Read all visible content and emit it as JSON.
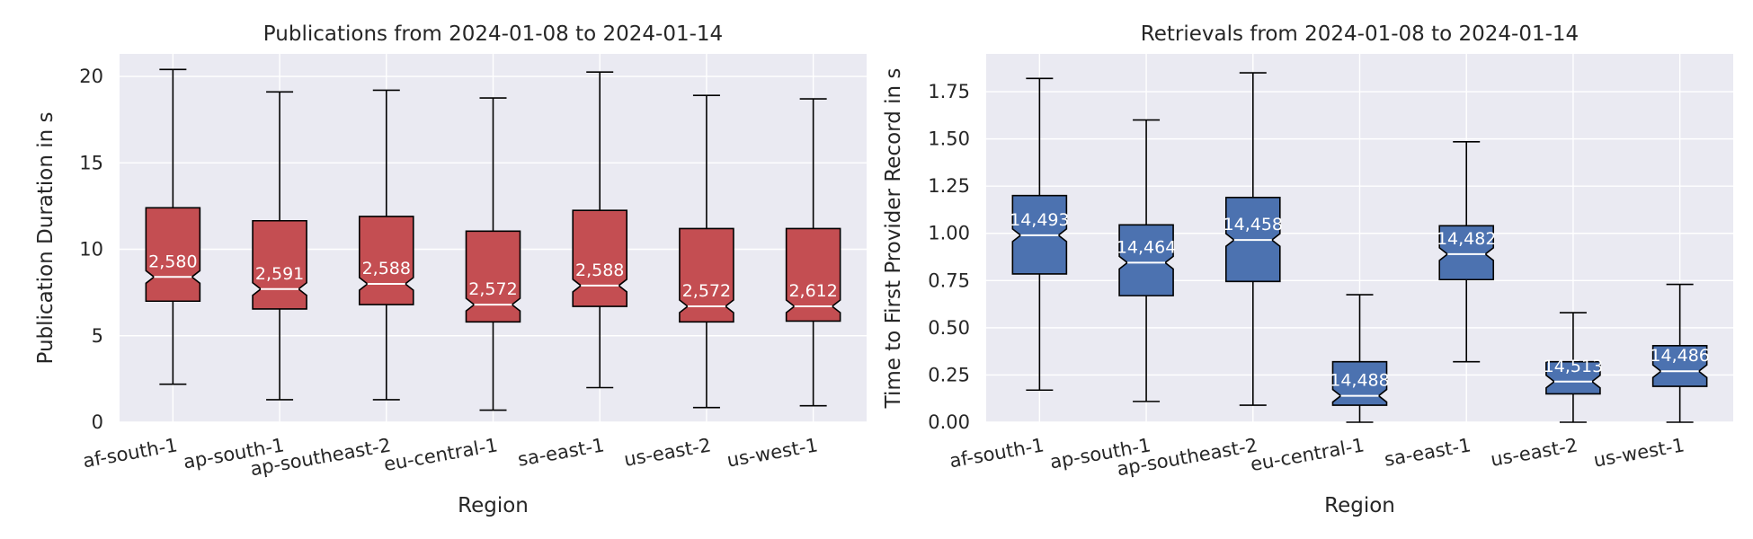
{
  "chart_data": [
    {
      "type": "boxplot",
      "title": "Publications from 2024-01-08 to 2024-01-14",
      "xlabel": "Region",
      "ylabel": "Publication Duration in s",
      "ylim": [
        0,
        21.3
      ],
      "yticks": [
        0,
        5,
        10,
        15,
        20
      ],
      "ytick_labels": [
        "0",
        "5",
        "10",
        "15",
        "20"
      ],
      "grid": true,
      "notched": true,
      "box_color": "#c44e52",
      "categories": [
        "af-south-1",
        "ap-south-1",
        "ap-southeast-2",
        "eu-central-1",
        "sa-east-1",
        "us-east-2",
        "us-west-1"
      ],
      "whisker_low": [
        2.2,
        1.3,
        1.3,
        0.7,
        2.0,
        0.85,
        0.95
      ],
      "q1": [
        7.0,
        6.55,
        6.8,
        5.8,
        6.7,
        5.8,
        5.85
      ],
      "median": [
        8.4,
        7.7,
        8.0,
        6.8,
        7.9,
        6.7,
        6.7
      ],
      "q3": [
        12.4,
        11.65,
        11.9,
        11.05,
        12.25,
        11.2,
        11.2
      ],
      "whisker_high": [
        20.4,
        19.1,
        19.2,
        18.75,
        20.25,
        18.9,
        18.7
      ],
      "counts": [
        "2,580",
        "2,591",
        "2,588",
        "2,572",
        "2,588",
        "2,572",
        "2,612"
      ]
    },
    {
      "type": "boxplot",
      "title": "Retrievals from 2024-01-08 to 2024-01-14",
      "xlabel": "Region",
      "ylabel": "Time to First Provider Record in s",
      "ylim": [
        0,
        1.95
      ],
      "yticks": [
        0,
        0.25,
        0.5,
        0.75,
        1.0,
        1.25,
        1.5,
        1.75
      ],
      "ytick_labels": [
        "0.00",
        "0.25",
        "0.50",
        "0.75",
        "1.00",
        "1.25",
        "1.50",
        "1.75"
      ],
      "grid": true,
      "notched": true,
      "box_color": "#4c72b0",
      "categories": [
        "af-south-1",
        "ap-south-1",
        "ap-southeast-2",
        "eu-central-1",
        "sa-east-1",
        "us-east-2",
        "us-west-1"
      ],
      "whisker_low": [
        0.17,
        0.11,
        0.09,
        0.0,
        0.32,
        0.0,
        0.0
      ],
      "q1": [
        0.785,
        0.67,
        0.745,
        0.09,
        0.755,
        0.15,
        0.19
      ],
      "median": [
        0.99,
        0.845,
        0.965,
        0.14,
        0.89,
        0.215,
        0.27
      ],
      "q3": [
        1.2,
        1.045,
        1.19,
        0.32,
        1.04,
        0.32,
        0.405
      ],
      "whisker_high": [
        1.82,
        1.6,
        1.85,
        0.675,
        1.485,
        0.58,
        0.73
      ],
      "counts": [
        "14,493",
        "14,464",
        "14,458",
        "14,488",
        "14,482",
        "14,513",
        "14,486"
      ]
    }
  ]
}
